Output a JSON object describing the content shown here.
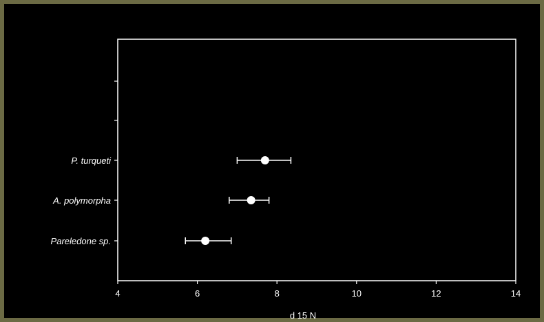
{
  "chart_data": {
    "type": "scatter",
    "xlabel": "d 15 N",
    "ylabel": "",
    "xlim": [
      4,
      14
    ],
    "xticks": [
      4,
      6,
      8,
      10,
      12,
      14
    ],
    "categories": [
      "P. turqueti",
      "A. polymorpha",
      "Pareledone sp."
    ],
    "series": [
      {
        "values": [
          7.7,
          7.35,
          6.2
        ],
        "err_low": [
          7.0,
          6.8,
          5.7
        ],
        "err_high": [
          8.35,
          7.8,
          6.85
        ]
      }
    ],
    "grid": false,
    "legend": "none"
  },
  "colors": {
    "background": "#000000",
    "frame": "#6b6a44",
    "foreground": "#ffffff"
  }
}
